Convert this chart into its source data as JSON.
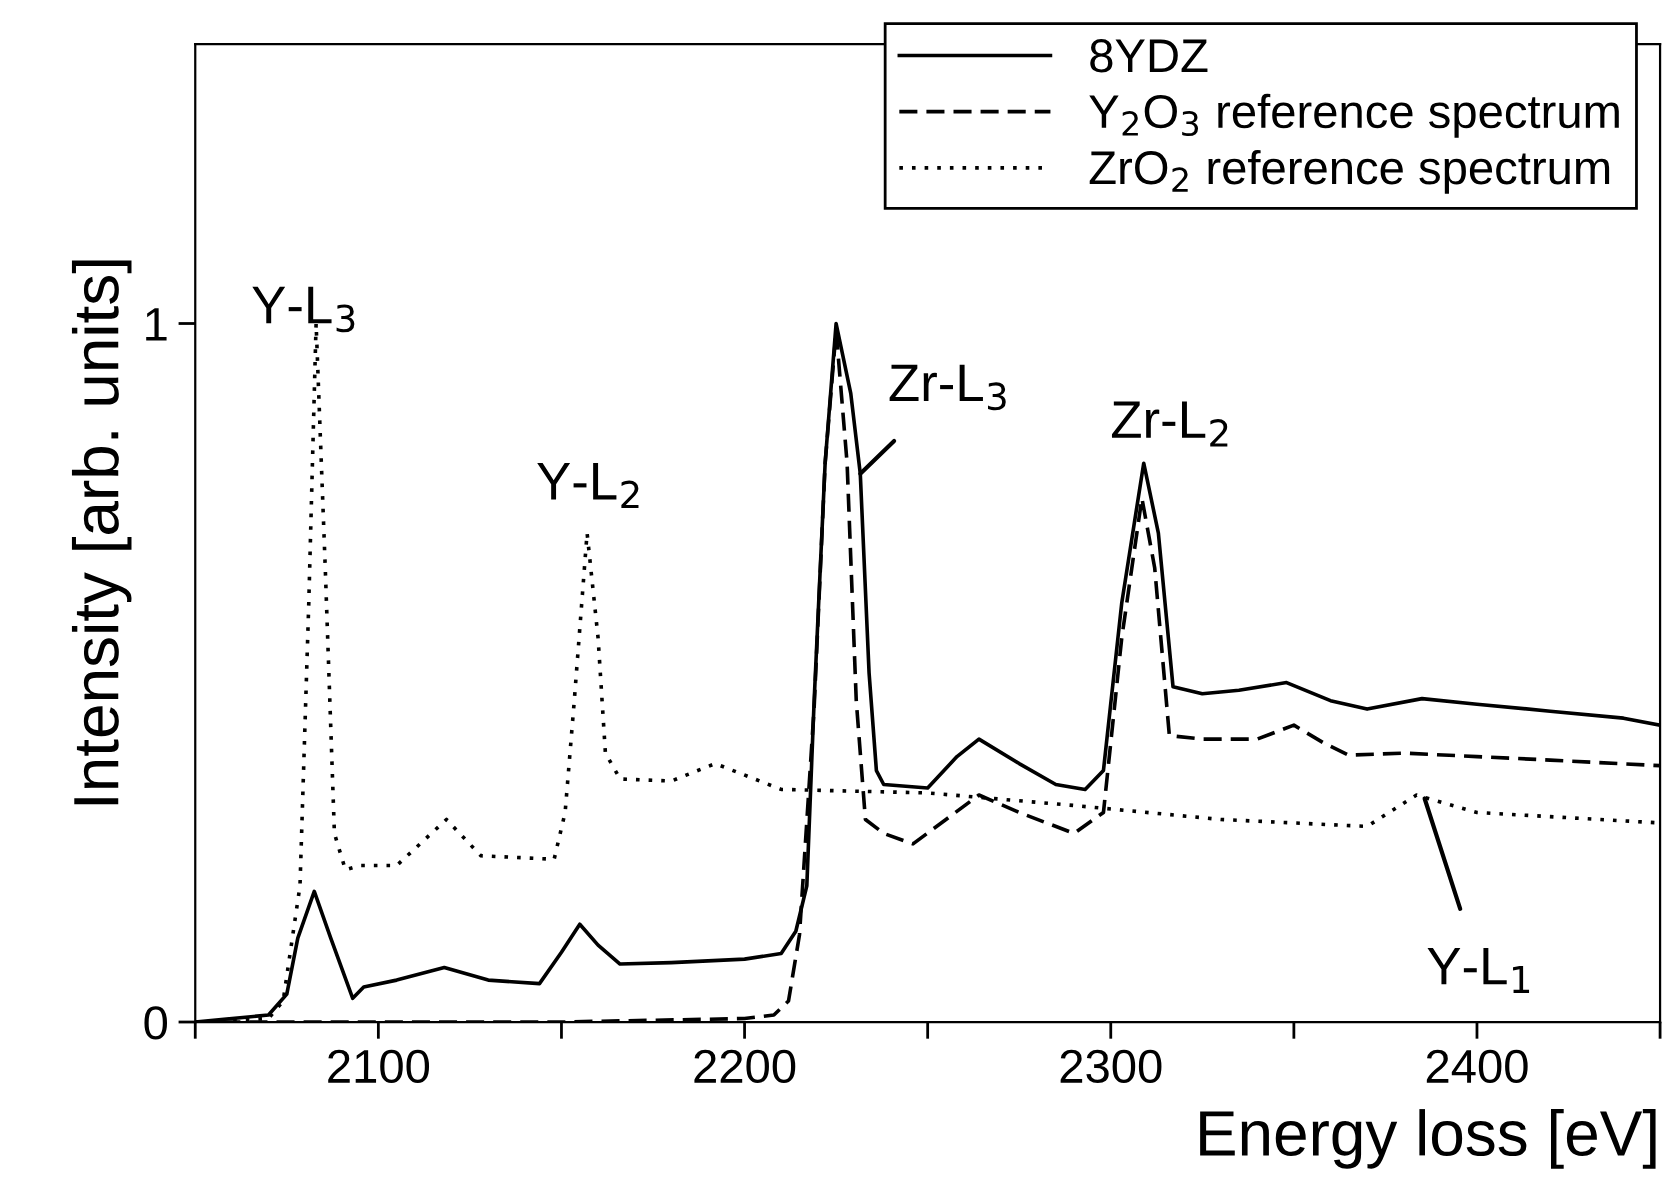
{
  "chart_data": {
    "type": "line",
    "xlabel": "Energy loss [eV]",
    "ylabel": "Intensity [arb. units]",
    "xlim": [
      2050,
      2450
    ],
    "ylim": [
      0,
      1.4
    ],
    "xticks": [
      {
        "value": 2050,
        "label": null
      },
      2100,
      {
        "value": 2150,
        "label": null
      },
      2200,
      {
        "value": 2250,
        "label": null
      },
      2300,
      {
        "value": 2350,
        "label": null
      },
      2400,
      {
        "value": 2450,
        "label": null
      }
    ],
    "yticks": [
      0,
      1
    ],
    "grid": false,
    "legend": "top right",
    "marker": "none",
    "series": [
      {
        "name": "8YDZ",
        "color": "#000000",
        "line_style": "solid",
        "x": [
          2050,
          2070,
          2075,
          2078,
          2082.5,
          2087,
          2093,
          2096,
          2105,
          2118,
          2130,
          2144,
          2150,
          2155,
          2160,
          2166,
          2180,
          2200,
          2210,
          2214,
          2217,
          2219,
          2222,
          2225,
          2229,
          2231.6,
          2234,
          2236,
          2238,
          2250,
          2258,
          2264,
          2275,
          2285,
          2293,
          2298,
          2303,
          2309,
          2313,
          2317,
          2325,
          2335,
          2348,
          2360,
          2370,
          2385,
          2400,
          2420,
          2440,
          2450
        ],
        "values": [
          0.0,
          0.01,
          0.04,
          0.12,
          0.187,
          0.12,
          0.034,
          0.05,
          0.06,
          0.078,
          0.06,
          0.055,
          0.1,
          0.14,
          0.11,
          0.083,
          0.085,
          0.09,
          0.098,
          0.13,
          0.195,
          0.46,
          0.8,
          1.0,
          0.9,
          0.785,
          0.5,
          0.36,
          0.34,
          0.335,
          0.38,
          0.405,
          0.37,
          0.34,
          0.333,
          0.36,
          0.6,
          0.8,
          0.7,
          0.48,
          0.47,
          0.475,
          0.486,
          0.46,
          0.448,
          0.463,
          0.455,
          0.445,
          0.435,
          0.425
        ]
      },
      {
        "name": "Y$_{2}$O$_{3}$ reference spectrum",
        "color": "#000000",
        "line_style": "dashed",
        "x": [
          2050,
          2150,
          2200,
          2208,
          2212,
          2215,
          2219,
          2222,
          2225,
          2228,
          2230.5,
          2233,
          2238,
          2246,
          2255,
          2264,
          2275,
          2290,
          2298,
          2303,
          2308.5,
          2312,
          2316,
          2325,
          2340,
          2350,
          2358,
          2365,
          2380,
          2400,
          2420,
          2450
        ],
        "values": [
          0.0,
          0.0,
          0.005,
          0.01,
          0.03,
          0.125,
          0.45,
          0.8,
          0.99,
          0.8,
          0.46,
          0.29,
          0.27,
          0.255,
          0.29,
          0.325,
          0.3,
          0.27,
          0.3,
          0.55,
          0.75,
          0.65,
          0.41,
          0.405,
          0.405,
          0.425,
          0.4,
          0.382,
          0.385,
          0.38,
          0.375,
          0.367
        ]
      },
      {
        "name": "ZrO$_{2}$ reference spectrum",
        "color": "#000000",
        "line_style": "dotted",
        "x": [
          2050,
          2070,
          2074,
          2078.6,
          2081,
          2083,
          2085.5,
          2088,
          2091,
          2095,
          2105,
          2118.6,
          2128,
          2148,
          2151,
          2153.5,
          2157,
          2160,
          2162,
          2166,
          2180,
          2192,
          2210,
          2250,
          2290,
          2330,
          2370,
          2383.5,
          2400,
          2450
        ],
        "values": [
          0.0,
          0.005,
          0.03,
          0.195,
          0.6,
          1.0,
          0.65,
          0.27,
          0.218,
          0.224,
          0.224,
          0.29,
          0.238,
          0.233,
          0.3,
          0.46,
          0.7,
          0.55,
          0.385,
          0.348,
          0.345,
          0.37,
          0.333,
          0.328,
          0.31,
          0.29,
          0.28,
          0.325,
          0.3,
          0.285
        ]
      }
    ],
    "annotations": [
      {
        "text": "Y-L$_{3}$",
        "x": 2083,
        "y": 1.0
      },
      {
        "text": "Y-L$_{2}$",
        "x": 2157,
        "y": 0.7
      },
      {
        "text": "Zr-L$_{3}$",
        "x": 2231.6,
        "y": 0.785
      },
      {
        "text": "Zr-L$_{2}$",
        "x": 2309,
        "y": 0.8
      },
      {
        "text": "Y-L$_{1}$",
        "x": 2385.7,
        "y": 0.32
      }
    ]
  }
}
